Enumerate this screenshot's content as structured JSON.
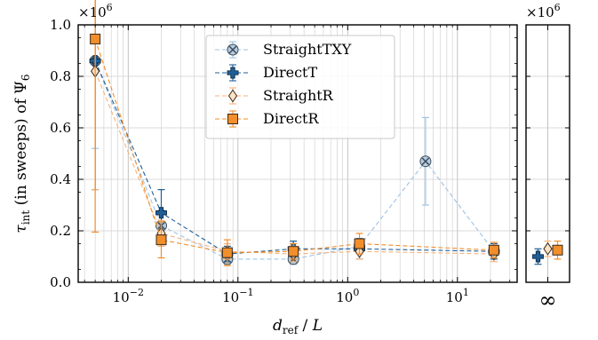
{
  "chart_data": {
    "type": "scatter",
    "xlabel": "d_ref / L",
    "ylabel": "τ_int (in sweeps) of Ψ_6",
    "x_scale": "log",
    "xlim": [
      0.0035,
      35
    ],
    "ylim": [
      0,
      1.0
    ],
    "y_multiplier": "×10^6",
    "y_multiplier_label": "×10",
    "y_multiplier_exp": "6",
    "y_ticks": [
      0.0,
      0.2,
      0.4,
      0.6,
      0.8,
      1.0
    ],
    "y_tick_labels": [
      "0.0",
      "0.2",
      "0.4",
      "0.6",
      "0.8",
      "1.0"
    ],
    "x_ticks": [
      0.01,
      0.1,
      1,
      10
    ],
    "x_tick_labels": [
      [
        "10",
        "−2"
      ],
      [
        "10",
        "−1"
      ],
      [
        "10",
        "0"
      ],
      [
        "10",
        "1"
      ]
    ],
    "inset_tick_label": "∞",
    "grid": true,
    "legend_position": "upper-center",
    "series": [
      {
        "name": "StraightTXY",
        "marker": "x-circle",
        "color": "#9ec3e6",
        "marker_fill": "#b8cde0",
        "x": [
          0.005,
          0.02,
          0.08,
          0.32,
          1.28,
          5.12,
          21.5
        ],
        "y": [
          0.86,
          0.22,
          0.09,
          0.09,
          0.14,
          0.47,
          0.12
        ],
        "err": [
          0.34,
          0.06,
          0.02,
          0.02,
          0.03,
          0.17,
          0.03
        ],
        "inf": null
      },
      {
        "name": "DirectT",
        "marker": "plus",
        "color": "#1f5f99",
        "marker_fill": "#1f5f99",
        "x": [
          0.005,
          0.02,
          0.08,
          0.32,
          1.28,
          5.12,
          21.5
        ],
        "y": [
          0.86,
          0.27,
          0.11,
          0.13,
          0.13,
          null,
          0.12
        ],
        "err": [
          0.5,
          0.09,
          0.03,
          0.03,
          0.04,
          null,
          0.03
        ],
        "inf": {
          "y": 0.1,
          "err": 0.03
        }
      },
      {
        "name": "StraightR",
        "marker": "diamond",
        "color": "#f7b27a",
        "marker_fill": "#fde2c4",
        "x": [
          0.005,
          0.02,
          0.08,
          0.32,
          1.28,
          5.12,
          21.5
        ],
        "y": [
          0.82,
          0.19,
          0.12,
          0.11,
          0.12,
          null,
          0.11
        ],
        "err": [
          0.46,
          0.05,
          0.03,
          0.03,
          0.03,
          null,
          0.03
        ],
        "inf": {
          "y": 0.13,
          "err": 0.03
        }
      },
      {
        "name": "DirectR",
        "marker": "square",
        "color": "#f28e2b",
        "marker_fill": "#f28e2b",
        "x": [
          0.005,
          0.02,
          0.08,
          0.32,
          1.28,
          5.12,
          21.5
        ],
        "y": [
          0.945,
          0.165,
          0.115,
          0.12,
          0.15,
          null,
          0.125
        ],
        "err": [
          0.75,
          0.07,
          0.05,
          0.03,
          0.04,
          null,
          0.03
        ],
        "inf": {
          "y": 0.125,
          "err": 0.035
        }
      }
    ]
  }
}
